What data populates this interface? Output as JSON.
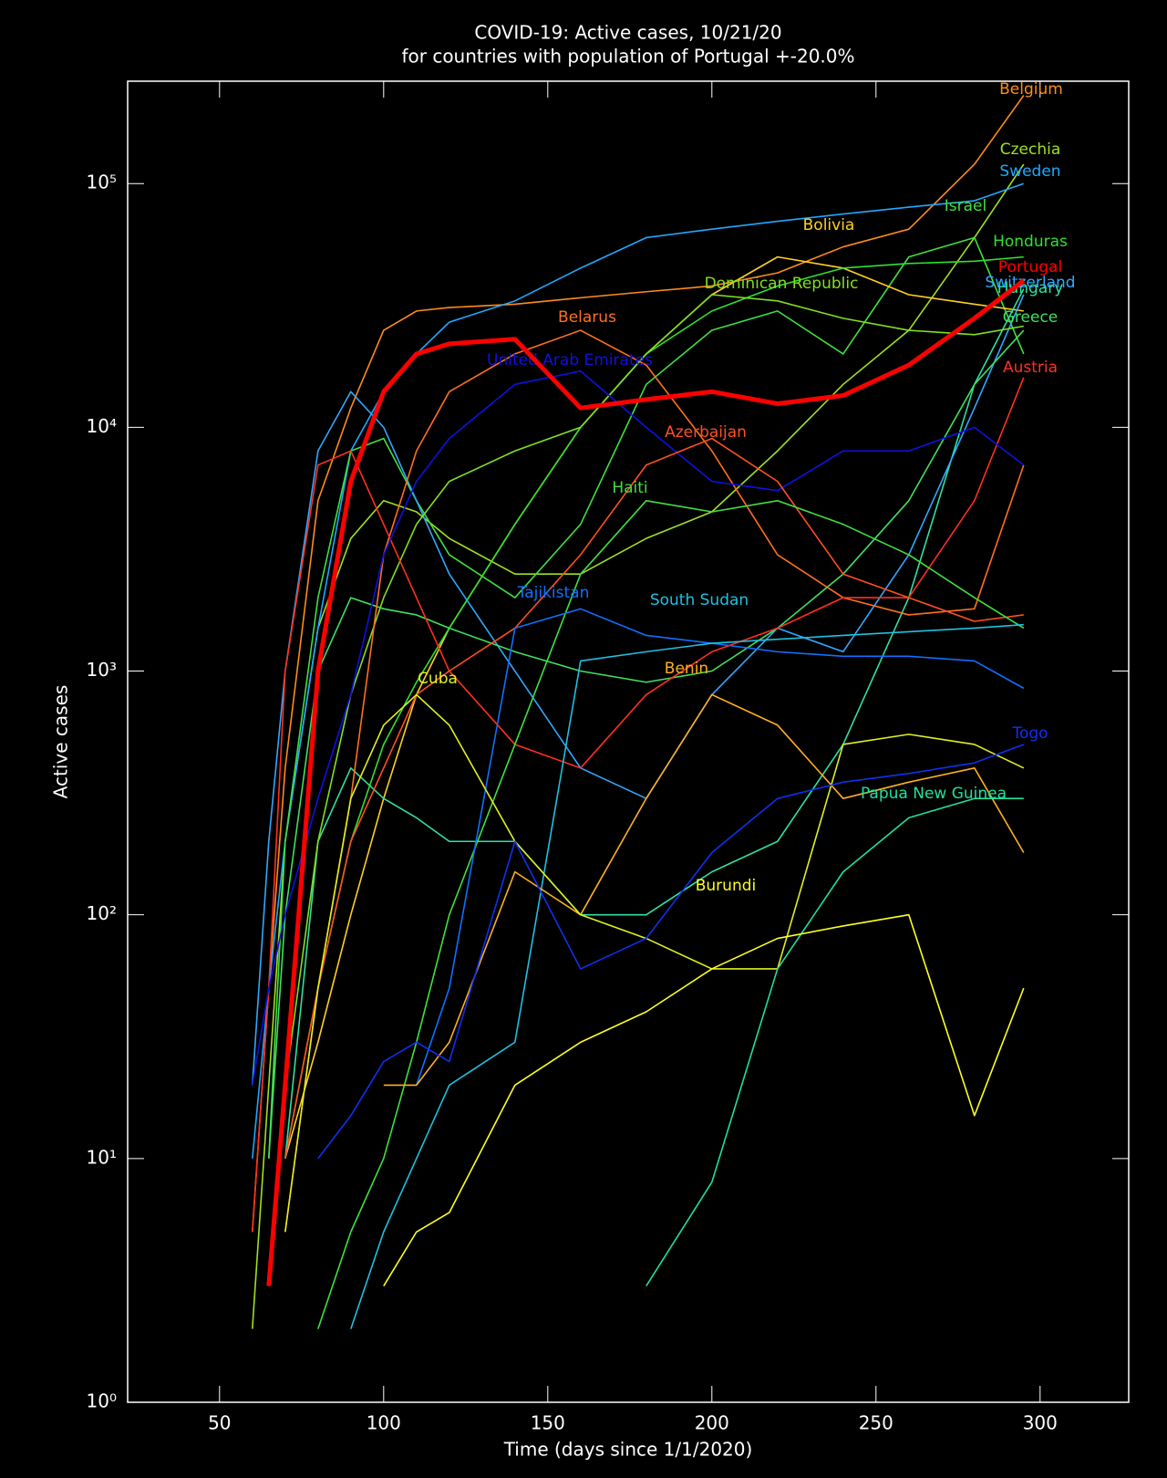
{
  "chart_data": {
    "type": "line",
    "title": "COVID-19: Active cases, 10/21/20",
    "subtitle": "for countries with population of Portugal +-20.0%",
    "x_label": "Time (days since 1/1/2020)",
    "y_label": "Active cases",
    "log_y": true,
    "highlight": "Portugal",
    "xlim": [
      22,
      327
    ],
    "ylim": [
      1,
      263000
    ],
    "xticks": [
      50,
      100,
      150,
      200,
      250,
      300
    ],
    "yticks": [
      {
        "value": 1,
        "label": "10⁰"
      },
      {
        "value": 10,
        "label": "10¹"
      },
      {
        "value": 100,
        "label": "10²"
      },
      {
        "value": 1000,
        "label": "10³"
      },
      {
        "value": 10000,
        "label": "10⁴"
      },
      {
        "value": 100000,
        "label": "10⁵"
      }
    ],
    "x": [
      60,
      65,
      70,
      80,
      90,
      100,
      110,
      120,
      140,
      160,
      180,
      200,
      220,
      240,
      260,
      280,
      295
    ],
    "series": [
      {
        "name": "Belgium",
        "color": "#ff8c1a",
        "values": [
          5,
          50,
          400,
          5000,
          12000,
          25000,
          30000,
          31000,
          32000,
          34000,
          36000,
          38000,
          43000,
          55000,
          65000,
          120000,
          230000
        ]
      },
      {
        "name": "Czechia",
        "color": "#a0e020",
        "values": [
          2,
          20,
          200,
          1500,
          3500,
          5000,
          4500,
          3500,
          2500,
          2500,
          3500,
          4500,
          8000,
          15000,
          25000,
          60000,
          120000
        ]
      },
      {
        "name": "Sweden",
        "color": "#20a8ff",
        "values": [
          10,
          50,
          200,
          1500,
          8000,
          14000,
          20000,
          27000,
          33000,
          45000,
          60000,
          65000,
          70000,
          75000,
          80000,
          85000,
          100000
        ]
      },
      {
        "name": "Israel",
        "color": "#40e040",
        "values": [
          null,
          10,
          200,
          2000,
          8000,
          9000,
          5000,
          3000,
          2000,
          4000,
          15000,
          25000,
          30000,
          20000,
          50000,
          60000,
          20000
        ]
      },
      {
        "name": "Bolivia",
        "color": "#ffd020",
        "values": [
          null,
          null,
          10,
          30,
          100,
          300,
          800,
          1500,
          4000,
          10000,
          20000,
          35000,
          50000,
          45000,
          35000,
          32000,
          30000
        ]
      },
      {
        "name": "Honduras",
        "color": "#30e030",
        "values": [
          null,
          null,
          10,
          50,
          200,
          500,
          900,
          1500,
          4000,
          10000,
          20000,
          30000,
          38000,
          45000,
          47000,
          48000,
          50000
        ]
      },
      {
        "name": "Portugal",
        "color": "#ff0000",
        "values": [
          null,
          3,
          20,
          1000,
          6000,
          14000,
          20000,
          22000,
          23000,
          12000,
          13000,
          14000,
          12500,
          13500,
          18000,
          28000,
          40000
        ]
      },
      {
        "name": "Hungary",
        "color": "#30e0a0",
        "values": [
          null,
          null,
          10,
          200,
          400,
          300,
          250,
          200,
          200,
          100,
          100,
          150,
          200,
          500,
          2000,
          15000,
          37000
        ]
      },
      {
        "name": "Switzerland",
        "color": "#30a8ff",
        "values": [
          20,
          200,
          1000,
          8000,
          14000,
          10000,
          5000,
          2500,
          1000,
          400,
          300,
          800,
          1500,
          1200,
          3000,
          12000,
          35000
        ]
      },
      {
        "name": "Dominican Republic",
        "color": "#80e020",
        "values": [
          null,
          null,
          20,
          200,
          800,
          2000,
          4000,
          6000,
          8000,
          10000,
          20000,
          35000,
          33000,
          28000,
          25000,
          24000,
          26000
        ]
      },
      {
        "name": "Greece",
        "color": "#40e060",
        "values": [
          null,
          10,
          100,
          1000,
          2000,
          1800,
          1700,
          1500,
          1200,
          1000,
          900,
          1000,
          1500,
          2500,
          5000,
          15000,
          25000
        ]
      },
      {
        "name": "Belarus",
        "color": "#ff7020",
        "values": [
          null,
          null,
          5,
          50,
          300,
          3000,
          8000,
          14000,
          20000,
          25000,
          18000,
          8000,
          3000,
          2000,
          1700,
          1800,
          7000
        ]
      },
      {
        "name": "Austria",
        "color": "#ff3020",
        "values": [
          5,
          50,
          1000,
          7000,
          8000,
          4000,
          2000,
          1000,
          500,
          400,
          800,
          1200,
          1500,
          2000,
          2000,
          5000,
          16000
        ]
      },
      {
        "name": "United Arab Emirates",
        "color": "#1010e0",
        "values": [
          20,
          50,
          100,
          300,
          800,
          3000,
          6000,
          9000,
          15000,
          17000,
          10000,
          6000,
          5500,
          8000,
          8000,
          10000,
          7000
        ]
      },
      {
        "name": "Azerbaijan",
        "color": "#ff5020",
        "values": [
          null,
          null,
          10,
          50,
          200,
          400,
          800,
          1000,
          1500,
          3000,
          7000,
          9000,
          6000,
          2500,
          2000,
          1600,
          1700
        ]
      },
      {
        "name": "Haiti",
        "color": "#40e040",
        "values": [
          null,
          null,
          null,
          2,
          5,
          10,
          30,
          100,
          500,
          2500,
          5000,
          4500,
          5000,
          4000,
          3000,
          2000,
          1500
        ]
      },
      {
        "name": "Tajikistan",
        "color": "#1070ff",
        "values": [
          null,
          null,
          null,
          null,
          null,
          null,
          20,
          50,
          1500,
          1800,
          1400,
          1300,
          1200,
          1150,
          1150,
          1100,
          850
        ]
      },
      {
        "name": "South Sudan",
        "color": "#20c0e0",
        "values": [
          null,
          null,
          null,
          null,
          2,
          5,
          10,
          20,
          30,
          1100,
          1200,
          1300,
          1350,
          1400,
          1450,
          1500,
          1550
        ]
      },
      {
        "name": "Benin",
        "color": "#ffb020",
        "values": [
          null,
          null,
          null,
          null,
          null,
          20,
          20,
          30,
          150,
          100,
          300,
          800,
          600,
          300,
          350,
          400,
          180
        ]
      },
      {
        "name": "Cuba",
        "color": "#e0f020",
        "values": [
          null,
          null,
          5,
          50,
          300,
          600,
          800,
          600,
          200,
          100,
          80,
          60,
          60,
          500,
          550,
          500,
          400
        ]
      },
      {
        "name": "Togo",
        "color": "#1030f0",
        "values": [
          null,
          null,
          null,
          10,
          15,
          25,
          30,
          25,
          200,
          60,
          80,
          180,
          300,
          350,
          380,
          420,
          500
        ]
      },
      {
        "name": "Papua New Guinea",
        "color": "#20e0a0",
        "values": [
          null,
          null,
          null,
          null,
          null,
          null,
          null,
          null,
          null,
          null,
          3,
          8,
          60,
          150,
          250,
          300,
          300
        ]
      },
      {
        "name": "Burundi",
        "color": "#ffff20",
        "values": [
          null,
          null,
          null,
          null,
          null,
          3,
          5,
          6,
          20,
          30,
          40,
          60,
          80,
          90,
          100,
          15,
          50
        ]
      }
    ]
  }
}
